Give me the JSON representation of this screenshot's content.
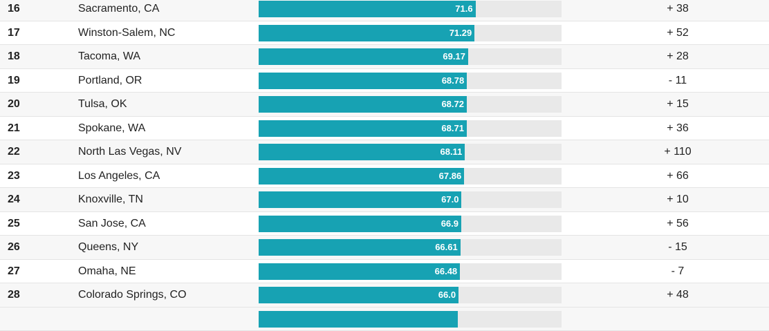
{
  "colors": {
    "bar": "#17a2b3",
    "track": "#e9e9e9",
    "stripe": "#f7f7f7"
  },
  "chart_data": {
    "type": "bar",
    "orientation": "horizontal",
    "columns": [
      "rank",
      "city",
      "score",
      "change"
    ],
    "xlim": [
      0,
      100
    ],
    "categories": [
      "Sacramento, CA",
      "Winston-Salem, NC",
      "Tacoma, WA",
      "Portland, OR",
      "Tulsa, OK",
      "Spokane, WA",
      "North Las Vegas, NV",
      "Los Angeles, CA",
      "Knoxville, TN",
      "San Jose, CA",
      "Queens, NY",
      "Omaha, NE",
      "Colorado Springs, CO"
    ],
    "values": [
      71.6,
      71.29,
      69.17,
      68.78,
      68.72,
      68.71,
      68.11,
      67.86,
      67.0,
      66.9,
      66.61,
      66.48,
      66.0
    ],
    "rows": [
      {
        "rank": "16",
        "city": "Sacramento, CA",
        "score": 71.6,
        "label": "71.6",
        "change": "+ 38"
      },
      {
        "rank": "17",
        "city": "Winston-Salem, NC",
        "score": 71.29,
        "label": "71.29",
        "change": "+ 52"
      },
      {
        "rank": "18",
        "city": "Tacoma, WA",
        "score": 69.17,
        "label": "69.17",
        "change": "+ 28"
      },
      {
        "rank": "19",
        "city": "Portland, OR",
        "score": 68.78,
        "label": "68.78",
        "change": "- 11"
      },
      {
        "rank": "20",
        "city": "Tulsa, OK",
        "score": 68.72,
        "label": "68.72",
        "change": "+ 15"
      },
      {
        "rank": "21",
        "city": "Spokane, WA",
        "score": 68.71,
        "label": "68.71",
        "change": "+ 36"
      },
      {
        "rank": "22",
        "city": "North Las Vegas, NV",
        "score": 68.11,
        "label": "68.11",
        "change": "+ 110"
      },
      {
        "rank": "23",
        "city": "Los Angeles, CA",
        "score": 67.86,
        "label": "67.86",
        "change": "+ 66"
      },
      {
        "rank": "24",
        "city": "Knoxville, TN",
        "score": 67.0,
        "label": "67.0",
        "change": "+ 10"
      },
      {
        "rank": "25",
        "city": "San Jose, CA",
        "score": 66.9,
        "label": "66.9",
        "change": "+ 56"
      },
      {
        "rank": "26",
        "city": "Queens, NY",
        "score": 66.61,
        "label": "66.61",
        "change": "- 15"
      },
      {
        "rank": "27",
        "city": "Omaha, NE",
        "score": 66.48,
        "label": "66.48",
        "change": "- 7"
      },
      {
        "rank": "28",
        "city": "Colorado Springs, CO",
        "score": 66.0,
        "label": "66.0",
        "change": "+ 48"
      }
    ]
  }
}
